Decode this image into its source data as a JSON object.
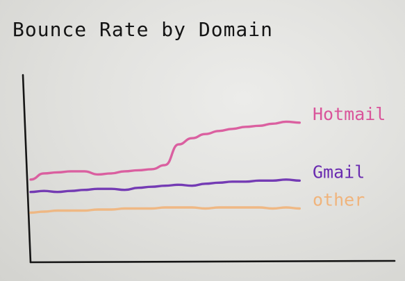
{
  "chart_data": {
    "type": "line",
    "title": "Bounce Rate by Domain",
    "xlabel": "",
    "ylabel": "",
    "grid": false,
    "legend": "right",
    "x": [
      0,
      1,
      2,
      3,
      4,
      5,
      6,
      7,
      8,
      9,
      10,
      11,
      12,
      13,
      14,
      15,
      16,
      17,
      18,
      19,
      20
    ],
    "xlim": [
      0,
      22
    ],
    "ylim": [
      0,
      100
    ],
    "series": [
      {
        "name": "Hotmail",
        "color": "#d9549a",
        "values": [
          40,
          43,
          43.5,
          44,
          44,
          42.5,
          43,
          44,
          44.5,
          45,
          47,
          57,
          60,
          62,
          63.5,
          64.5,
          65.5,
          66,
          67,
          68,
          67.5
        ]
      },
      {
        "name": "Gmail",
        "color": "#6a2cb0",
        "values": [
          34,
          34.5,
          34,
          34.5,
          35,
          35.5,
          35.5,
          35,
          36,
          36.5,
          37,
          37.5,
          37,
          38,
          38.5,
          39,
          39,
          39.5,
          39.5,
          40,
          39.5
        ]
      },
      {
        "name": "other",
        "color": "#f0b47c",
        "values": [
          24,
          24.5,
          25,
          25,
          25,
          25.5,
          25.5,
          26,
          26,
          26,
          26.5,
          26.5,
          26.5,
          26,
          26.5,
          26.5,
          26.5,
          26.5,
          26,
          26.5,
          26
        ]
      }
    ]
  }
}
